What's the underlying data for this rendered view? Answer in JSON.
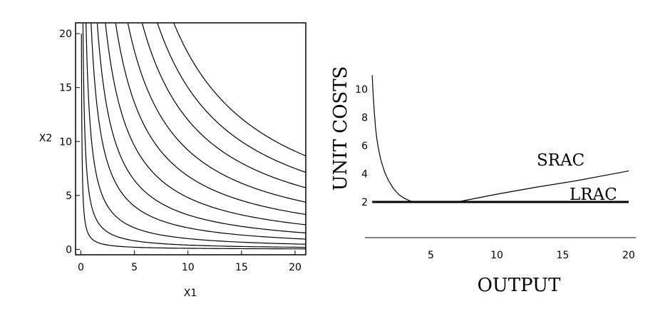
{
  "chart_data": [
    {
      "type": "line",
      "title": "",
      "xlabel": "X1",
      "ylabel": "X2",
      "xlim": [
        -0.5,
        21
      ],
      "ylim": [
        -0.5,
        21
      ],
      "xticks": [
        "0",
        "5",
        "10",
        "15",
        "20"
      ],
      "yticks": [
        "0",
        "5",
        "10",
        "15",
        "20"
      ],
      "frame": true,
      "series": [
        {
          "k": 1
        },
        {
          "k": 4
        },
        {
          "k": 10
        },
        {
          "k": 20
        },
        {
          "k": 32
        },
        {
          "k": 48
        },
        {
          "k": 68
        },
        {
          "k": 92
        },
        {
          "k": 120
        },
        {
          "k": 150
        },
        {
          "k": 182
        }
      ]
    },
    {
      "type": "line",
      "title": "",
      "xlabel": "OUTPUT",
      "ylabel": "UNIT COSTS",
      "xlim": [
        0,
        20
      ],
      "ylim": [
        2,
        11
      ],
      "xticks": [
        "5",
        "10",
        "15",
        "20"
      ],
      "yticks": [
        "2",
        "4",
        "6",
        "8",
        "10"
      ],
      "series": [
        {
          "name": "SRAC",
          "x": [
            0.55,
            0.6,
            0.7,
            0.8,
            0.9,
            1.0,
            1.2,
            1.5,
            1.8,
            2.2,
            2.6,
            3.0,
            3.5,
            4.0,
            7.0,
            10.0,
            13.0,
            16.0,
            18.0,
            20.0
          ],
          "y": [
            11.0,
            10.0,
            8.5,
            7.3,
            6.5,
            5.9,
            5.0,
            4.1,
            3.5,
            2.9,
            2.5,
            2.25,
            2.05,
            2.0,
            2.0,
            2.55,
            3.05,
            3.5,
            3.85,
            4.2
          ]
        },
        {
          "name": "LRAC",
          "x": [
            0.55,
            20
          ],
          "y": [
            2,
            2
          ]
        }
      ]
    }
  ]
}
